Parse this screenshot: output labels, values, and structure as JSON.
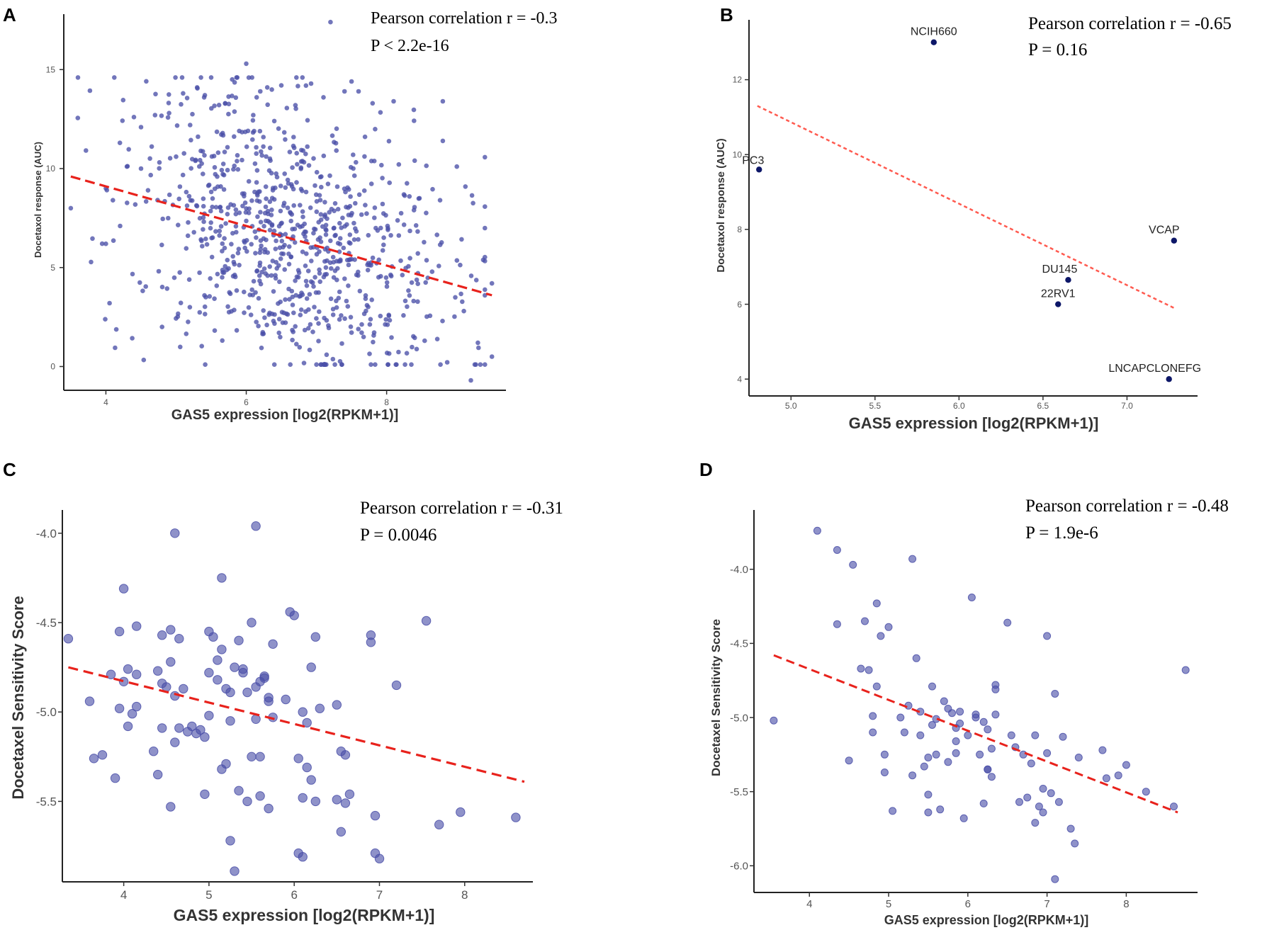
{
  "figure": {
    "panels": [
      "A",
      "B",
      "C",
      "D"
    ]
  },
  "chart_data": [
    {
      "panel": "A",
      "type": "scatter",
      "title": "",
      "xlabel": "GAS5 expression [log2(RPKM+1)]",
      "ylabel": "Docetaxol response (AUC)",
      "xlim": [
        3.4,
        9.7
      ],
      "ylim": [
        -1.2,
        17.8
      ],
      "xticks": [
        4,
        6,
        8
      ],
      "yticks": [
        0,
        5,
        10,
        15
      ],
      "annotation": [
        "Pearson correlation r = -0.3",
        "P < 2.2e-16"
      ],
      "trend": {
        "x": [
          3.5,
          9.5
        ],
        "y": [
          9.6,
          3.6
        ]
      },
      "point_color": "#4a4fa8",
      "trend_color": "#e8221c",
      "n_points": 900,
      "points_note": "dense cloud, approx. 900 cell lines, x 3.5–9.5, y -0.7–17.4",
      "points": [
        [
          3.5,
          8.0
        ],
        [
          4.0,
          6.2
        ],
        [
          4.0,
          9.0
        ],
        [
          4.1,
          8.4
        ],
        [
          4.2,
          11.3
        ],
        [
          4.3,
          10.1
        ],
        [
          4.4,
          12.6
        ],
        [
          4.5,
          10.0
        ],
        [
          4.6,
          8.9
        ],
        [
          4.7,
          12.7
        ],
        [
          4.8,
          2.0
        ],
        [
          4.9,
          12.8
        ],
        [
          5.0,
          10.6
        ],
        [
          5.1,
          13.8
        ],
        [
          5.2,
          12.2
        ],
        [
          5.3,
          14.1
        ],
        [
          5.4,
          13.6
        ],
        [
          5.5,
          14.6
        ],
        [
          5.6,
          10.8
        ],
        [
          5.7,
          13.3
        ],
        [
          5.8,
          14.5
        ],
        [
          5.9,
          11.9
        ],
        [
          6.0,
          15.3
        ],
        [
          6.1,
          12.7
        ],
        [
          6.2,
          13.9
        ],
        [
          6.3,
          14.1
        ],
        [
          6.4,
          12.4
        ],
        [
          6.5,
          14.2
        ],
        [
          6.7,
          13.2
        ],
        [
          7.1,
          13.6
        ],
        [
          7.2,
          17.4
        ],
        [
          7.4,
          13.9
        ],
        [
          7.5,
          14.4
        ],
        [
          7.6,
          13.9
        ],
        [
          7.8,
          13.3
        ],
        [
          8.1,
          13.4
        ],
        [
          8.4,
          10.4
        ],
        [
          8.8,
          13.4
        ],
        [
          8.8,
          11.4
        ],
        [
          9.0,
          10.1
        ],
        [
          9.1,
          2.8
        ],
        [
          9.2,
          -0.7
        ],
        [
          9.3,
          1.2
        ],
        [
          9.4,
          3.6
        ],
        [
          9.5,
          0.5
        ],
        [
          9.5,
          4.2
        ]
      ]
    },
    {
      "panel": "B",
      "type": "scatter",
      "title": "",
      "xlabel": "GAS5 expression [log2(RPKM+1)]",
      "ylabel": "Docetaxol response (AUC)",
      "xlim": [
        4.75,
        7.42
      ],
      "ylim": [
        3.55,
        13.6
      ],
      "xticks": [
        5.0,
        5.5,
        6.0,
        6.5,
        7.0
      ],
      "xtick_labels": [
        "5.0",
        "5.5",
        "6.0",
        "6.5",
        "7.0"
      ],
      "yticks": [
        4,
        6,
        8,
        10,
        12
      ],
      "annotation": [
        "Pearson correlation r = -0.65",
        "P = 0.16"
      ],
      "trend": {
        "x": [
          4.8,
          7.28
        ],
        "y": [
          11.3,
          5.9
        ]
      },
      "point_color": "#0d1768",
      "trend_color": "#ff5a4f",
      "points": [
        {
          "label": "NCIH660",
          "x": 5.85,
          "y": 13.0
        },
        {
          "label": "PC3",
          "x": 4.81,
          "y": 9.6
        },
        {
          "label": "VCAP",
          "x": 7.28,
          "y": 7.7
        },
        {
          "label": "DU145",
          "x": 6.65,
          "y": 6.65
        },
        {
          "label": "22RV1",
          "x": 6.59,
          "y": 6.0
        },
        {
          "label": "LNCAPCLONEFG",
          "x": 7.25,
          "y": 4.0
        }
      ]
    },
    {
      "panel": "C",
      "type": "scatter",
      "title": "",
      "xlabel": "GAS5 expression [log2(RPKM+1)]",
      "ylabel": "Docetaxel Sensitivity Score",
      "xlim": [
        3.28,
        8.8
      ],
      "ylim": [
        -5.95,
        -3.87
      ],
      "xticks": [
        4,
        5,
        6,
        7,
        8
      ],
      "yticks": [
        -4.0,
        -4.5,
        -5.0,
        -5.5
      ],
      "ytick_labels": [
        "-4.0",
        "-4.5",
        "-5.0",
        "-5.5"
      ],
      "annotation": [
        "Pearson correlation r = -0.31",
        "P = 0.0046"
      ],
      "trend": {
        "x": [
          3.35,
          8.7
        ],
        "y": [
          -4.75,
          -5.39
        ]
      },
      "point_color": "#4a4fa8",
      "trend_color": "#e8221c",
      "points": [
        [
          3.35,
          -4.59
        ],
        [
          3.6,
          -4.94
        ],
        [
          3.65,
          -5.26
        ],
        [
          3.75,
          -5.24
        ],
        [
          3.85,
          -4.79
        ],
        [
          3.9,
          -5.37
        ],
        [
          3.95,
          -4.55
        ],
        [
          3.95,
          -4.98
        ],
        [
          4.0,
          -4.31
        ],
        [
          4.0,
          -4.83
        ],
        [
          4.05,
          -5.08
        ],
        [
          4.05,
          -4.76
        ],
        [
          4.1,
          -5.01
        ],
        [
          4.15,
          -4.97
        ],
        [
          4.15,
          -4.52
        ],
        [
          4.15,
          -4.79
        ],
        [
          4.35,
          -5.22
        ],
        [
          4.4,
          -5.35
        ],
        [
          4.4,
          -4.77
        ],
        [
          4.45,
          -4.57
        ],
        [
          4.45,
          -4.84
        ],
        [
          4.45,
          -5.09
        ],
        [
          4.5,
          -4.86
        ],
        [
          4.55,
          -5.53
        ],
        [
          4.55,
          -4.72
        ],
        [
          4.55,
          -4.54
        ],
        [
          4.6,
          -4.91
        ],
        [
          4.6,
          -5.17
        ],
        [
          4.6,
          -4.0
        ],
        [
          4.65,
          -5.09
        ],
        [
          4.65,
          -4.59
        ],
        [
          4.7,
          -4.87
        ],
        [
          4.75,
          -5.11
        ],
        [
          4.8,
          -5.08
        ],
        [
          4.85,
          -5.12
        ],
        [
          4.9,
          -5.1
        ],
        [
          4.95,
          -5.46
        ],
        [
          4.95,
          -5.14
        ],
        [
          5.0,
          -5.02
        ],
        [
          5.0,
          -4.78
        ],
        [
          5.0,
          -4.55
        ],
        [
          5.05,
          -4.58
        ],
        [
          5.1,
          -4.71
        ],
        [
          5.1,
          -4.82
        ],
        [
          5.15,
          -4.65
        ],
        [
          5.15,
          -5.32
        ],
        [
          5.15,
          -4.25
        ],
        [
          5.2,
          -4.87
        ],
        [
          5.2,
          -5.29
        ],
        [
          5.25,
          -5.05
        ],
        [
          5.25,
          -4.89
        ],
        [
          5.25,
          -5.72
        ],
        [
          5.3,
          -5.89
        ],
        [
          5.3,
          -4.75
        ],
        [
          5.35,
          -4.6
        ],
        [
          5.35,
          -5.44
        ],
        [
          5.4,
          -4.78
        ],
        [
          5.4,
          -4.76
        ],
        [
          5.45,
          -4.89
        ],
        [
          5.45,
          -5.5
        ],
        [
          5.5,
          -4.5
        ],
        [
          5.5,
          -5.25
        ],
        [
          5.55,
          -3.96
        ],
        [
          5.55,
          -4.86
        ],
        [
          5.55,
          -5.04
        ],
        [
          5.6,
          -4.83
        ],
        [
          5.6,
          -5.25
        ],
        [
          5.6,
          -5.47
        ],
        [
          5.65,
          -4.8
        ],
        [
          5.65,
          -4.81
        ],
        [
          5.7,
          -4.92
        ],
        [
          5.7,
          -5.54
        ],
        [
          5.7,
          -4.94
        ],
        [
          5.75,
          -5.03
        ],
        [
          5.75,
          -4.62
        ],
        [
          5.9,
          -4.93
        ],
        [
          5.95,
          -4.44
        ],
        [
          6.0,
          -4.46
        ],
        [
          6.05,
          -5.26
        ],
        [
          6.05,
          -5.79
        ],
        [
          6.1,
          -5.48
        ],
        [
          6.1,
          -5.81
        ],
        [
          6.1,
          -5.0
        ],
        [
          6.15,
          -5.31
        ],
        [
          6.15,
          -5.06
        ],
        [
          6.2,
          -5.38
        ],
        [
          6.2,
          -4.75
        ],
        [
          6.25,
          -4.58
        ],
        [
          6.25,
          -5.5
        ],
        [
          6.3,
          -4.98
        ],
        [
          6.5,
          -5.49
        ],
        [
          6.5,
          -4.96
        ],
        [
          6.55,
          -5.67
        ],
        [
          6.55,
          -5.22
        ],
        [
          6.6,
          -5.51
        ],
        [
          6.6,
          -5.24
        ],
        [
          6.65,
          -5.46
        ],
        [
          6.9,
          -4.61
        ],
        [
          6.9,
          -4.57
        ],
        [
          6.95,
          -5.58
        ],
        [
          6.95,
          -5.79
        ],
        [
          7.0,
          -5.82
        ],
        [
          7.2,
          -4.85
        ],
        [
          7.55,
          -4.49
        ],
        [
          7.7,
          -5.63
        ],
        [
          7.95,
          -5.56
        ],
        [
          8.6,
          -5.59
        ]
      ]
    },
    {
      "panel": "D",
      "type": "scatter",
      "title": "",
      "xlabel": "GAS5 expression [log2(RPKM+1)]",
      "ylabel": "Docetaxel Sensitivity Score",
      "xlim": [
        3.3,
        8.9
      ],
      "ylim": [
        -6.18,
        -3.6
      ],
      "xticks": [
        4,
        5,
        6,
        7,
        8
      ],
      "yticks": [
        -4.0,
        -4.5,
        -5.0,
        -5.5,
        -6.0
      ],
      "ytick_labels": [
        "-4.0",
        "-4.5",
        "-5.0",
        "-5.5",
        "-6.0"
      ],
      "annotation": [
        "Pearson correlation r = -0.48",
        "P = 1.9e-6"
      ],
      "trend": {
        "x": [
          3.55,
          8.65
        ],
        "y": [
          -4.58,
          -5.64
        ]
      },
      "point_color": "#4a4fa8",
      "trend_color": "#e8221c",
      "points": [
        [
          3.55,
          -5.02
        ],
        [
          4.1,
          -3.74
        ],
        [
          4.35,
          -3.87
        ],
        [
          4.35,
          -4.37
        ],
        [
          4.5,
          -5.29
        ],
        [
          4.55,
          -3.97
        ],
        [
          4.65,
          -4.67
        ],
        [
          4.7,
          -4.35
        ],
        [
          4.75,
          -4.68
        ],
        [
          4.8,
          -4.99
        ],
        [
          4.8,
          -5.1
        ],
        [
          4.85,
          -4.79
        ],
        [
          4.85,
          -4.23
        ],
        [
          4.9,
          -4.45
        ],
        [
          4.95,
          -5.25
        ],
        [
          4.95,
          -5.37
        ],
        [
          5.0,
          -4.39
        ],
        [
          5.05,
          -5.63
        ],
        [
          5.15,
          -5.0
        ],
        [
          5.2,
          -5.1
        ],
        [
          5.25,
          -4.92
        ],
        [
          5.3,
          -5.39
        ],
        [
          5.3,
          -3.93
        ],
        [
          5.35,
          -4.6
        ],
        [
          5.4,
          -5.12
        ],
        [
          5.4,
          -4.96
        ],
        [
          5.45,
          -5.33
        ],
        [
          5.5,
          -5.27
        ],
        [
          5.5,
          -5.64
        ],
        [
          5.5,
          -5.52
        ],
        [
          5.55,
          -5.05
        ],
        [
          5.55,
          -4.79
        ],
        [
          5.6,
          -5.25
        ],
        [
          5.6,
          -5.01
        ],
        [
          5.65,
          -5.62
        ],
        [
          5.7,
          -4.89
        ],
        [
          5.75,
          -4.94
        ],
        [
          5.75,
          -5.3
        ],
        [
          5.8,
          -4.97
        ],
        [
          5.85,
          -5.16
        ],
        [
          5.85,
          -5.07
        ],
        [
          5.85,
          -5.24
        ],
        [
          5.9,
          -5.04
        ],
        [
          5.9,
          -4.96
        ],
        [
          5.95,
          -5.68
        ],
        [
          6.0,
          -5.12
        ],
        [
          6.05,
          -4.19
        ],
        [
          6.1,
          -5.0
        ],
        [
          6.1,
          -4.98
        ],
        [
          6.15,
          -5.25
        ],
        [
          6.2,
          -5.03
        ],
        [
          6.2,
          -5.58
        ],
        [
          6.25,
          -5.08
        ],
        [
          6.25,
          -5.35
        ],
        [
          6.25,
          -5.35
        ],
        [
          6.3,
          -5.4
        ],
        [
          6.3,
          -5.21
        ],
        [
          6.35,
          -4.81
        ],
        [
          6.35,
          -4.98
        ],
        [
          6.35,
          -4.78
        ],
        [
          6.5,
          -4.36
        ],
        [
          6.55,
          -5.12
        ],
        [
          6.6,
          -5.2
        ],
        [
          6.65,
          -5.57
        ],
        [
          6.7,
          -5.25
        ],
        [
          6.75,
          -5.54
        ],
        [
          6.8,
          -5.31
        ],
        [
          6.85,
          -5.71
        ],
        [
          6.85,
          -5.12
        ],
        [
          6.9,
          -5.6
        ],
        [
          6.95,
          -5.64
        ],
        [
          6.95,
          -5.48
        ],
        [
          7.0,
          -5.24
        ],
        [
          7.0,
          -4.45
        ],
        [
          7.05,
          -5.51
        ],
        [
          7.1,
          -6.09
        ],
        [
          7.1,
          -4.84
        ],
        [
          7.15,
          -5.57
        ],
        [
          7.2,
          -5.13
        ],
        [
          7.3,
          -5.75
        ],
        [
          7.35,
          -5.85
        ],
        [
          7.4,
          -5.27
        ],
        [
          7.7,
          -5.22
        ],
        [
          7.75,
          -5.41
        ],
        [
          7.9,
          -5.39
        ],
        [
          8.0,
          -5.32
        ],
        [
          8.25,
          -5.5
        ],
        [
          8.6,
          -5.6
        ],
        [
          8.75,
          -4.68
        ]
      ]
    }
  ]
}
